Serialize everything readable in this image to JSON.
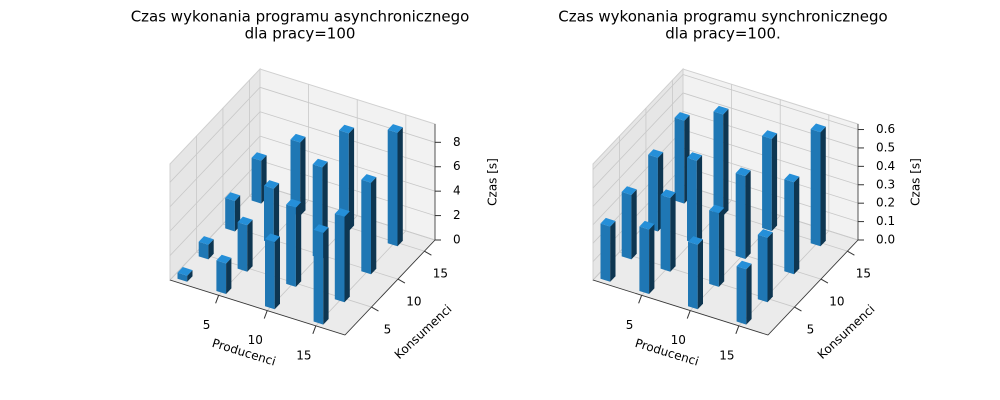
{
  "chart_data": [
    {
      "type": "bar3d",
      "title": [
        "Czas wykonania programu asynchronicznego",
        "dla pracy=100"
      ],
      "xlabel": "Producenci",
      "ylabel": "Konsumenci",
      "zlabel": "Czas [s]",
      "x": [
        1,
        1,
        1,
        1,
        5,
        5,
        5,
        5,
        10,
        10,
        10,
        10,
        15,
        15,
        15,
        15
      ],
      "y": [
        1,
        5,
        10,
        15,
        1,
        5,
        10,
        15,
        1,
        5,
        10,
        15,
        1,
        5,
        10,
        15
      ],
      "values": [
        0.5,
        1.2,
        2.5,
        3.5,
        2.5,
        3.8,
        4.5,
        6,
        5.5,
        6.5,
        7.5,
        8,
        7.5,
        7,
        7.5,
        9.3
      ],
      "color": "#1f77b4",
      "xlim": [
        0,
        18
      ],
      "ylim": [
        0,
        17
      ],
      "zlim": [
        0,
        9.5
      ],
      "xticks": [
        5,
        10,
        15
      ],
      "yticks": [
        5,
        10,
        15
      ],
      "zticks": [
        0,
        2,
        4,
        6,
        8
      ],
      "grid": true
    },
    {
      "type": "bar3d",
      "title": [
        "Czas wykonania programu synchronicznego",
        "dla pracy=100."
      ],
      "xlabel": "Producenci",
      "ylabel": "Konsumenci",
      "zlabel": "Czas [s]",
      "x": [
        1,
        1,
        1,
        1,
        5,
        5,
        5,
        5,
        10,
        10,
        10,
        10,
        15,
        15,
        15,
        15
      ],
      "y": [
        1,
        5,
        10,
        15,
        1,
        5,
        10,
        15,
        1,
        5,
        10,
        15,
        1,
        5,
        10,
        15
      ],
      "values": [
        0.3,
        0.35,
        0.4,
        0.45,
        0.35,
        0.4,
        0.45,
        0.55,
        0.35,
        0.4,
        0.45,
        0.5,
        0.3,
        0.35,
        0.5,
        0.62
      ],
      "color": "#1f77b4",
      "xlim": [
        0,
        18
      ],
      "ylim": [
        0,
        17
      ],
      "zlim": [
        0,
        0.63
      ],
      "xticks": [
        5,
        10,
        15
      ],
      "yticks": [
        5,
        10,
        15
      ],
      "zticks": [
        {
          "value": 0,
          "label": "0.0"
        },
        0.1,
        0.2,
        0.3,
        0.4,
        0.5,
        0.6
      ],
      "grid": true
    }
  ]
}
